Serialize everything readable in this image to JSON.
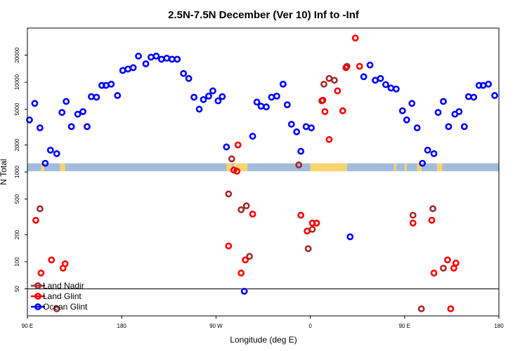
{
  "chart_data": {
    "type": "scatter",
    "title": "2.5N-7.5N December (Ver 10)   Inf to -Inf",
    "xlabel": "Longitude (deg E)",
    "ylabel": "N Total",
    "x_axis": {
      "range_deg": [
        90,
        450
      ],
      "ticks": [
        {
          "value": 90,
          "label": "90 E"
        },
        {
          "value": 180,
          "label": "180"
        },
        {
          "value": 270,
          "label": "90 W"
        },
        {
          "value": 360,
          "label": "0"
        },
        {
          "value": 450,
          "label": "90 E"
        },
        {
          "value": 540,
          "label": "180"
        }
      ],
      "range_display": [
        90,
        540
      ]
    },
    "y_axis": {
      "scale": "log",
      "ylim": [
        25,
        40000
      ],
      "ticks": [
        {
          "value": 50,
          "label": "50"
        },
        {
          "value": 100,
          "label": "100"
        },
        {
          "value": 200,
          "label": "200"
        },
        {
          "value": 500,
          "label": "500"
        },
        {
          "value": 1000,
          "label": "1000"
        },
        {
          "value": 2000,
          "label": "2000"
        },
        {
          "value": 5000,
          "label": "5000"
        },
        {
          "value": 10000,
          "label": "10000"
        },
        {
          "value": 20000,
          "label": "20000"
        }
      ]
    },
    "reference_line_y": 50,
    "band": {
      "ymin": 1020,
      "ymax": 1250,
      "ocean_color": "#a3bcdc",
      "land_color": "#f9d46f"
    },
    "land_segments": [
      [
        103,
        106
      ],
      [
        121,
        126
      ],
      [
        280,
        285
      ],
      [
        287,
        300
      ],
      [
        360,
        395
      ],
      [
        440,
        442
      ],
      [
        450,
        452
      ],
      [
        462,
        466
      ]
    ],
    "colors": {
      "land_nadir": "#a52a2a",
      "land_glint": "#ff0000",
      "ocean_glint": "#0000ff"
    },
    "series": [
      {
        "name": "Land Nadir",
        "color": "#a52a2a",
        "points": [
          [
            102,
            390
          ],
          [
            118,
            30
          ],
          [
            282,
            570
          ],
          [
            285,
            1400
          ],
          [
            294,
            380
          ],
          [
            299,
            420
          ],
          [
            302,
            115
          ],
          [
            349,
            1200
          ],
          [
            358,
            140
          ],
          [
            362,
            230
          ],
          [
            371,
            6200
          ],
          [
            373,
            9500
          ],
          [
            378,
            11000
          ],
          [
            383,
            10500
          ],
          [
            395,
            15000
          ],
          [
            458,
            330
          ],
          [
            466,
            30
          ],
          [
            477,
            390
          ],
          [
            487,
            85
          ]
        ]
      },
      {
        "name": "Land Glint",
        "color": "#ff0000",
        "points": [
          [
            98,
            290
          ],
          [
            103,
            75
          ],
          [
            113,
            105
          ],
          [
            124,
            85
          ],
          [
            126,
            95
          ],
          [
            282,
            150
          ],
          [
            287,
            1050
          ],
          [
            290,
            1020
          ],
          [
            291,
            2000
          ],
          [
            294,
            75
          ],
          [
            298,
            105
          ],
          [
            305,
            340
          ],
          [
            351,
            330
          ],
          [
            357,
            220
          ],
          [
            362,
            270
          ],
          [
            366,
            270
          ],
          [
            372,
            6300
          ],
          [
            374,
            4700
          ],
          [
            378,
            2300
          ],
          [
            386,
            8000
          ],
          [
            391,
            4800
          ],
          [
            394,
            14500
          ],
          [
            403,
            31000
          ],
          [
            407,
            15000
          ],
          [
            458,
            270
          ],
          [
            476,
            290
          ],
          [
            478,
            75
          ],
          [
            491,
            105
          ],
          [
            494,
            30
          ],
          [
            497,
            85
          ],
          [
            499,
            97
          ]
        ]
      },
      {
        "name": "Ocean Glint",
        "color": "#0000ff",
        "points": [
          [
            92,
            3800
          ],
          [
            97,
            5800
          ],
          [
            102,
            3100
          ],
          [
            107,
            1250
          ],
          [
            112,
            1750
          ],
          [
            118,
            1600
          ],
          [
            123,
            4600
          ],
          [
            127,
            6100
          ],
          [
            132,
            3200
          ],
          [
            138,
            4400
          ],
          [
            143,
            4700
          ],
          [
            147,
            3200
          ],
          [
            151,
            6900
          ],
          [
            156,
            6800
          ],
          [
            161,
            9200
          ],
          [
            165,
            9200
          ],
          [
            170,
            9500
          ],
          [
            176,
            7100
          ],
          [
            181,
            13500
          ],
          [
            186,
            14000
          ],
          [
            191,
            14500
          ],
          [
            196,
            19500
          ],
          [
            203,
            16000
          ],
          [
            208,
            19000
          ],
          [
            213,
            19500
          ],
          [
            218,
            18000
          ],
          [
            223,
            18500
          ],
          [
            228,
            18000
          ],
          [
            233,
            18000
          ],
          [
            239,
            12500
          ],
          [
            244,
            11000
          ],
          [
            249,
            6800
          ],
          [
            254,
            5000
          ],
          [
            258,
            6400
          ],
          [
            263,
            7000
          ],
          [
            267,
            8000
          ],
          [
            272,
            6200
          ],
          [
            276,
            6900
          ],
          [
            280,
            1900
          ],
          [
            297,
            47
          ],
          [
            305,
            2500
          ],
          [
            309,
            6000
          ],
          [
            313,
            5400
          ],
          [
            318,
            5300
          ],
          [
            323,
            6800
          ],
          [
            328,
            7000
          ],
          [
            334,
            9500
          ],
          [
            338,
            5600
          ],
          [
            342,
            3400
          ],
          [
            347,
            2800
          ],
          [
            351,
            1700
          ],
          [
            356,
            3200
          ],
          [
            361,
            3100
          ],
          [
            398,
            190
          ],
          [
            411,
            11500
          ],
          [
            417,
            15500
          ],
          [
            422,
            10500
          ],
          [
            427,
            11000
          ],
          [
            432,
            9400
          ],
          [
            437,
            8600
          ],
          [
            442,
            8400
          ],
          [
            448,
            4800
          ],
          [
            452,
            3800
          ],
          [
            457,
            5800
          ],
          [
            462,
            3100
          ],
          [
            467,
            1250
          ],
          [
            472,
            1750
          ],
          [
            478,
            1600
          ],
          [
            482,
            4600
          ],
          [
            487,
            6100
          ],
          [
            492,
            3200
          ],
          [
            498,
            4400
          ],
          [
            502,
            4700
          ],
          [
            507,
            3200
          ],
          [
            511,
            6900
          ],
          [
            516,
            6800
          ],
          [
            521,
            9200
          ],
          [
            525,
            9200
          ],
          [
            530,
            9500
          ],
          [
            536,
            7100
          ]
        ]
      }
    ],
    "legend": {
      "position": "bottom-left",
      "entries": [
        {
          "label": "Land Nadir",
          "color": "#a52a2a"
        },
        {
          "label": "Land Glint",
          "color": "#ff0000"
        },
        {
          "label": "Ocean Glint",
          "color": "#0000ff"
        }
      ]
    }
  }
}
